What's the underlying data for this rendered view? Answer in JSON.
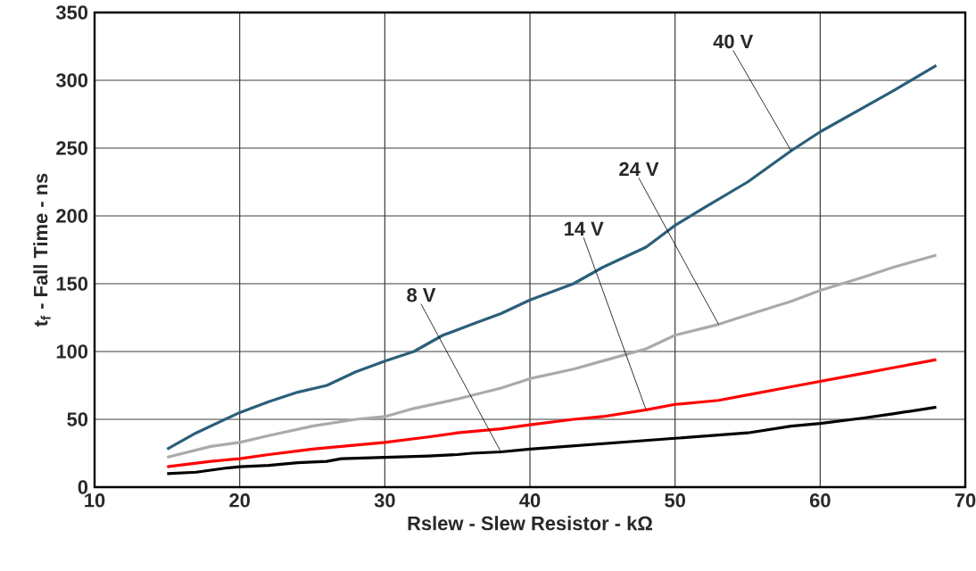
{
  "chart_data": {
    "type": "line",
    "xlabel": "Rslew - Slew Resistor - kΩ",
    "ylabel": "t$_{f}$ - Fall Time - ns",
    "xlim": [
      10,
      70
    ],
    "xticks": [
      10,
      20,
      30,
      40,
      50,
      60,
      70
    ],
    "ylim": [
      0,
      350
    ],
    "yticks": [
      0,
      50,
      100,
      150,
      200,
      250,
      300,
      350
    ],
    "grid": true,
    "marker": "none",
    "line_style": "solid",
    "series": [
      {
        "name": "40 V",
        "color": "#2b5f7a",
        "x": [
          15,
          17,
          18,
          20,
          22,
          24,
          26,
          28,
          30,
          32,
          34,
          36,
          38,
          40,
          43,
          45,
          48,
          50,
          52,
          55,
          58,
          60,
          63,
          65,
          68
        ],
        "values": [
          28,
          40,
          45,
          55,
          63,
          70,
          75,
          85,
          93,
          100,
          112,
          120,
          128,
          138,
          150,
          162,
          177,
          193,
          206,
          225,
          248,
          262,
          280,
          292,
          311
        ]
      },
      {
        "name": "24 V",
        "color": "#aaaaaa",
        "x": [
          15,
          18,
          20,
          22,
          25,
          28,
          30,
          32,
          35,
          38,
          40,
          43,
          45,
          48,
          50,
          53,
          55,
          58,
          60,
          63,
          65,
          68
        ],
        "values": [
          22,
          30,
          33,
          38,
          45,
          50,
          52,
          58,
          65,
          73,
          80,
          87,
          93,
          102,
          112,
          120,
          127,
          137,
          145,
          155,
          162,
          171
        ]
      },
      {
        "name": "14 V",
        "color": "#ff0000",
        "x": [
          15,
          18,
          20,
          22,
          25,
          28,
          30,
          33,
          35,
          38,
          40,
          43,
          45,
          48,
          50,
          53,
          55,
          58,
          60,
          63,
          65,
          68
        ],
        "values": [
          15,
          19,
          21,
          24,
          28,
          31,
          33,
          37,
          40,
          43,
          46,
          50,
          52,
          57,
          61,
          64,
          68,
          74,
          78,
          84,
          88,
          94
        ]
      },
      {
        "name": "8 V",
        "color": "#000000",
        "x": [
          15,
          17,
          19,
          20,
          22,
          24,
          26,
          27,
          30,
          33,
          35,
          36,
          38,
          40,
          45,
          50,
          55,
          58,
          60,
          63,
          65,
          68
        ],
        "values": [
          10,
          11,
          14,
          15,
          16,
          18,
          19,
          21,
          22,
          23,
          24,
          25,
          26,
          28,
          32,
          36,
          40,
          45,
          47,
          51,
          54,
          59
        ]
      }
    ]
  }
}
